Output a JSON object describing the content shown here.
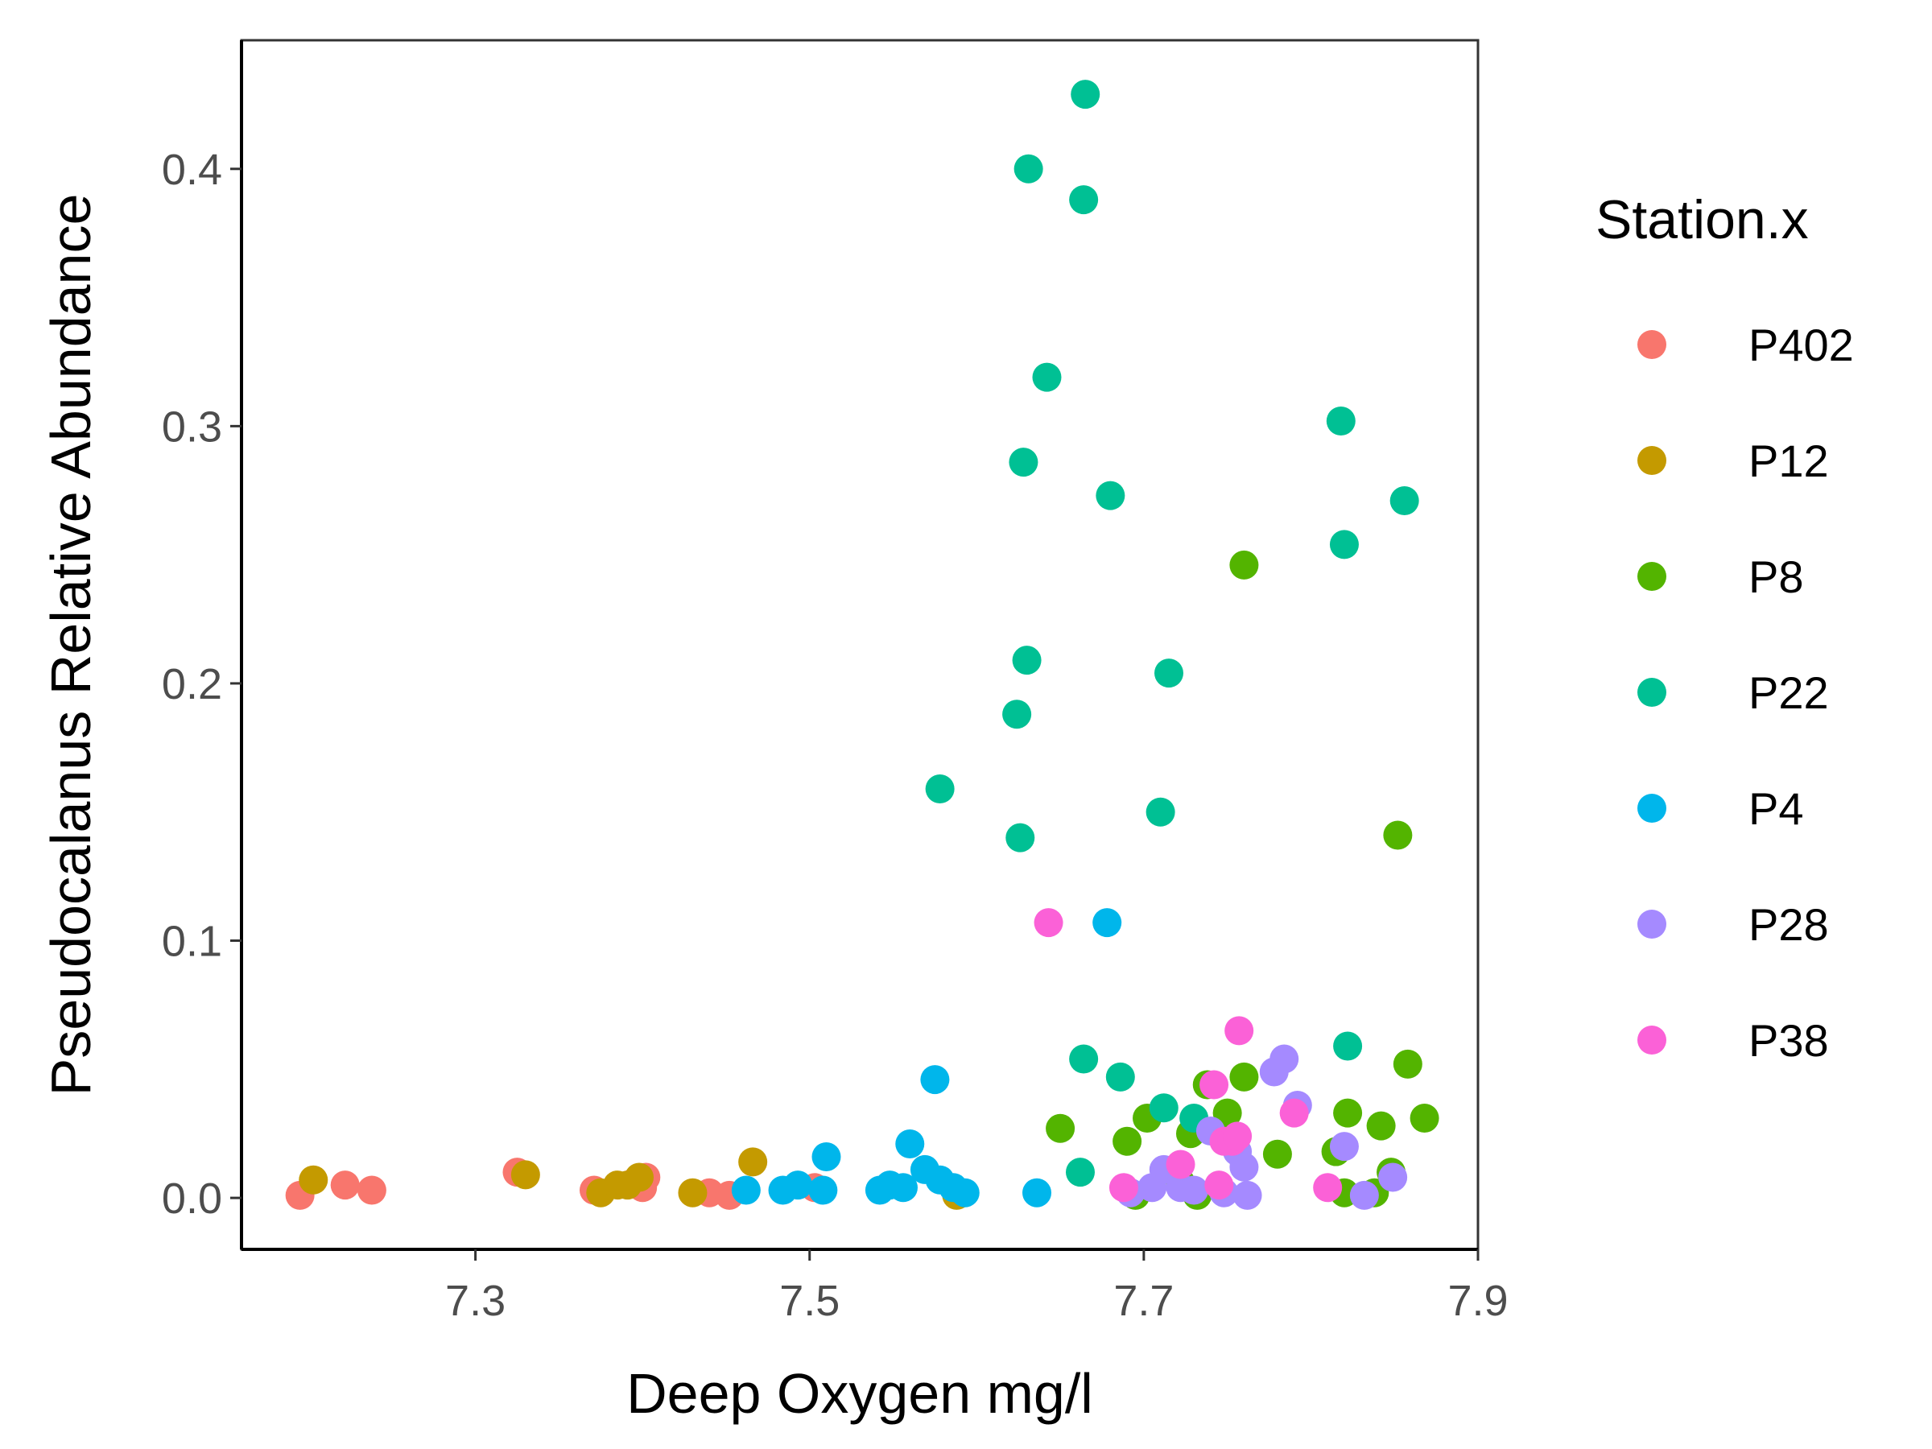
{
  "chart_data": {
    "type": "scatter",
    "title": "",
    "xlabel": "Deep Oxygen mg/l",
    "ylabel": "Pseudocalanus Relative Abundance",
    "xlim": [
      7.16,
      7.9
    ],
    "ylim": [
      -0.02,
      0.45
    ],
    "x_ticks": [
      7.3,
      7.5,
      7.7,
      7.9
    ],
    "x_tick_labels": [
      "7.3",
      "7.5",
      "7.7",
      "7.9"
    ],
    "y_ticks": [
      0.0,
      0.1,
      0.2,
      0.3,
      0.4
    ],
    "y_tick_labels": [
      "0.0",
      "0.1",
      "0.2",
      "0.3",
      "0.4"
    ],
    "grid": false,
    "legend": {
      "title": "Station.x",
      "position": "right"
    },
    "series": [
      {
        "name": "P402",
        "color": "#F8766D",
        "points": [
          [
            7.195,
            0.001
          ],
          [
            7.222,
            0.005
          ],
          [
            7.238,
            0.003
          ],
          [
            7.325,
            0.01
          ],
          [
            7.371,
            0.003
          ],
          [
            7.395,
            0.006
          ],
          [
            7.4,
            0.004
          ],
          [
            7.402,
            0.008
          ],
          [
            7.44,
            0.002
          ],
          [
            7.452,
            0.001
          ],
          [
            7.503,
            0.004
          ]
        ]
      },
      {
        "name": "P12",
        "color": "#C49A00",
        "points": [
          [
            7.203,
            0.007
          ],
          [
            7.33,
            0.009
          ],
          [
            7.375,
            0.002
          ],
          [
            7.385,
            0.005
          ],
          [
            7.391,
            0.005
          ],
          [
            7.398,
            0.008
          ],
          [
            7.43,
            0.002
          ],
          [
            7.466,
            0.014
          ],
          [
            7.588,
            0.001
          ]
        ]
      },
      {
        "name": "P8",
        "color": "#53B400",
        "points": [
          [
            7.65,
            0.027
          ],
          [
            7.69,
            0.022
          ],
          [
            7.695,
            0.001
          ],
          [
            7.702,
            0.031
          ],
          [
            7.722,
            0.006
          ],
          [
            7.728,
            0.025
          ],
          [
            7.732,
            0.001
          ],
          [
            7.738,
            0.044
          ],
          [
            7.75,
            0.033
          ],
          [
            7.76,
            0.047
          ],
          [
            7.76,
            0.246
          ],
          [
            7.78,
            0.017
          ],
          [
            7.815,
            0.018
          ],
          [
            7.82,
            0.002
          ],
          [
            7.822,
            0.033
          ],
          [
            7.838,
            0.002
          ],
          [
            7.842,
            0.028
          ],
          [
            7.848,
            0.01
          ],
          [
            7.852,
            0.141
          ],
          [
            7.858,
            0.052
          ],
          [
            7.868,
            0.031
          ]
        ]
      },
      {
        "name": "P22",
        "color": "#00C094",
        "points": [
          [
            7.578,
            0.159
          ],
          [
            7.624,
            0.188
          ],
          [
            7.626,
            0.14
          ],
          [
            7.628,
            0.286
          ],
          [
            7.63,
            0.209
          ],
          [
            7.631,
            0.4
          ],
          [
            7.642,
            0.319
          ],
          [
            7.662,
            0.01
          ],
          [
            7.664,
            0.054
          ],
          [
            7.664,
            0.388
          ],
          [
            7.665,
            0.429
          ],
          [
            7.68,
            0.273
          ],
          [
            7.686,
            0.047
          ],
          [
            7.71,
            0.15
          ],
          [
            7.712,
            0.035
          ],
          [
            7.715,
            0.204
          ],
          [
            7.73,
            0.031
          ],
          [
            7.818,
            0.302
          ],
          [
            7.82,
            0.254
          ],
          [
            7.822,
            0.059
          ],
          [
            7.856,
            0.271
          ]
        ]
      },
      {
        "name": "P4",
        "color": "#00B6EB",
        "points": [
          [
            7.462,
            0.003
          ],
          [
            7.484,
            0.003
          ],
          [
            7.493,
            0.005
          ],
          [
            7.508,
            0.003
          ],
          [
            7.51,
            0.016
          ],
          [
            7.542,
            0.003
          ],
          [
            7.548,
            0.005
          ],
          [
            7.556,
            0.004
          ],
          [
            7.56,
            0.021
          ],
          [
            7.569,
            0.011
          ],
          [
            7.575,
            0.046
          ],
          [
            7.578,
            0.007
          ],
          [
            7.586,
            0.004
          ],
          [
            7.593,
            0.002
          ],
          [
            7.636,
            0.002
          ],
          [
            7.678,
            0.107
          ]
        ]
      },
      {
        "name": "P28",
        "color": "#A58AFF",
        "points": [
          [
            7.692,
            0.002
          ],
          [
            7.705,
            0.004
          ],
          [
            7.712,
            0.011
          ],
          [
            7.722,
            0.004
          ],
          [
            7.73,
            0.003
          ],
          [
            7.74,
            0.026
          ],
          [
            7.748,
            0.002
          ],
          [
            7.756,
            0.018
          ],
          [
            7.76,
            0.012
          ],
          [
            7.762,
            0.001
          ],
          [
            7.778,
            0.049
          ],
          [
            7.784,
            0.054
          ],
          [
            7.792,
            0.036
          ],
          [
            7.82,
            0.02
          ],
          [
            7.832,
            0.001
          ],
          [
            7.849,
            0.008
          ]
        ]
      },
      {
        "name": "P38",
        "color": "#FB61D7",
        "points": [
          [
            7.643,
            0.107
          ],
          [
            7.688,
            0.004
          ],
          [
            7.722,
            0.013
          ],
          [
            7.742,
            0.044
          ],
          [
            7.745,
            0.005
          ],
          [
            7.748,
            0.022
          ],
          [
            7.753,
            0.022
          ],
          [
            7.756,
            0.024
          ],
          [
            7.757,
            0.065
          ],
          [
            7.79,
            0.033
          ],
          [
            7.81,
            0.004
          ]
        ]
      }
    ]
  }
}
